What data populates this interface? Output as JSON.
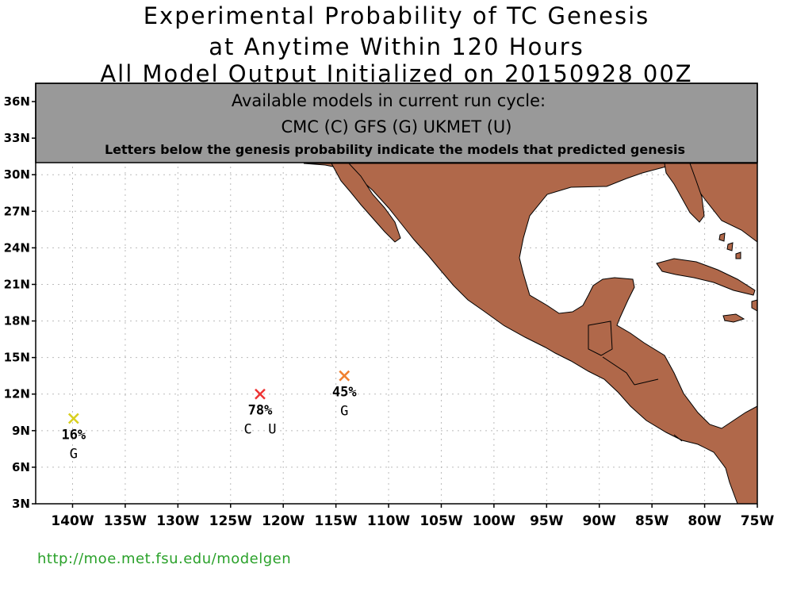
{
  "title": {
    "line1": "Experimental Probability of TC Genesis",
    "line2": "at Anytime Within 120 Hours",
    "line3": "All Model Output Initialized on 20150928 00Z"
  },
  "banner": {
    "line1": "Available models in current run cycle:",
    "line2": "CMC (C) GFS (G)  UKMET (U)",
    "line3": "Letters below the genesis probability indicate the models that predicted genesis"
  },
  "axes": {
    "lon_min": -143.5,
    "lon_max": -75,
    "lat_min": 3,
    "lat_max": 37.5,
    "lat_ticks": [
      {
        "lat": 36,
        "label": "36N"
      },
      {
        "lat": 33,
        "label": "33N"
      },
      {
        "lat": 30,
        "label": "30N"
      },
      {
        "lat": 27,
        "label": "27N"
      },
      {
        "lat": 24,
        "label": "24N"
      },
      {
        "lat": 21,
        "label": "21N"
      },
      {
        "lat": 18,
        "label": "18N"
      },
      {
        "lat": 15,
        "label": "15N"
      },
      {
        "lat": 12,
        "label": "12N"
      },
      {
        "lat": 9,
        "label": "9N"
      },
      {
        "lat": 6,
        "label": "6N"
      },
      {
        "lat": 3,
        "label": "3N"
      }
    ],
    "lon_ticks": [
      {
        "lon": -140,
        "label": "140W"
      },
      {
        "lon": -135,
        "label": "135W"
      },
      {
        "lon": -130,
        "label": "130W"
      },
      {
        "lon": -125,
        "label": "125W"
      },
      {
        "lon": -120,
        "label": "120W"
      },
      {
        "lon": -115,
        "label": "115W"
      },
      {
        "lon": -110,
        "label": "110W"
      },
      {
        "lon": -105,
        "label": "105W"
      },
      {
        "lon": -100,
        "label": "100W"
      },
      {
        "lon": -95,
        "label": "95W"
      },
      {
        "lon": -90,
        "label": "90W"
      },
      {
        "lon": -85,
        "label": "85W"
      },
      {
        "lon": -80,
        "label": "80W"
      },
      {
        "lon": -75,
        "label": "75W"
      }
    ]
  },
  "colors": {
    "land": "#b0684a",
    "banner": "#999999",
    "grid": "#bbbbbb",
    "url": "#2aa12a"
  },
  "markers": [
    {
      "lon": -139.9,
      "lat": 10.0,
      "probability": "16%",
      "models": "G",
      "color": "#d9cf1f"
    },
    {
      "lon": -122.2,
      "lat": 12.0,
      "probability": "78%",
      "models": "C  U",
      "color": "#ee3333"
    },
    {
      "lon": -114.2,
      "lat": 13.5,
      "probability": "45%",
      "models": "G",
      "color": "#f08030"
    }
  ],
  "footer_url": "http://moe.met.fsu.edu/modelgen"
}
